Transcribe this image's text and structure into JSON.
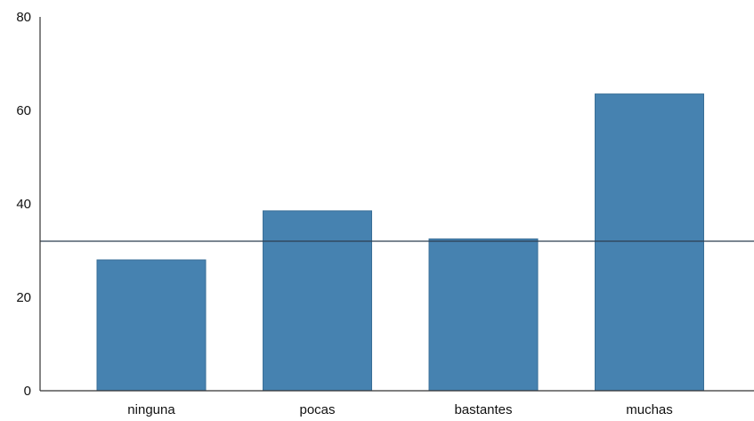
{
  "chart_data": {
    "type": "bar",
    "title": "",
    "xlabel": "",
    "ylabel": "",
    "categories": [
      "ninguna",
      "pocas",
      "bastantes",
      "muchas"
    ],
    "values": [
      28,
      38.5,
      32.5,
      63.5
    ],
    "ylim": [
      0,
      80
    ],
    "yticks": [
      "0",
      "20",
      "40",
      "60",
      "80"
    ],
    "reference_line": 32,
    "bar_color": "#4682b0",
    "reference_line_color": "#2c3e4f",
    "grid": false,
    "legend": "none"
  }
}
